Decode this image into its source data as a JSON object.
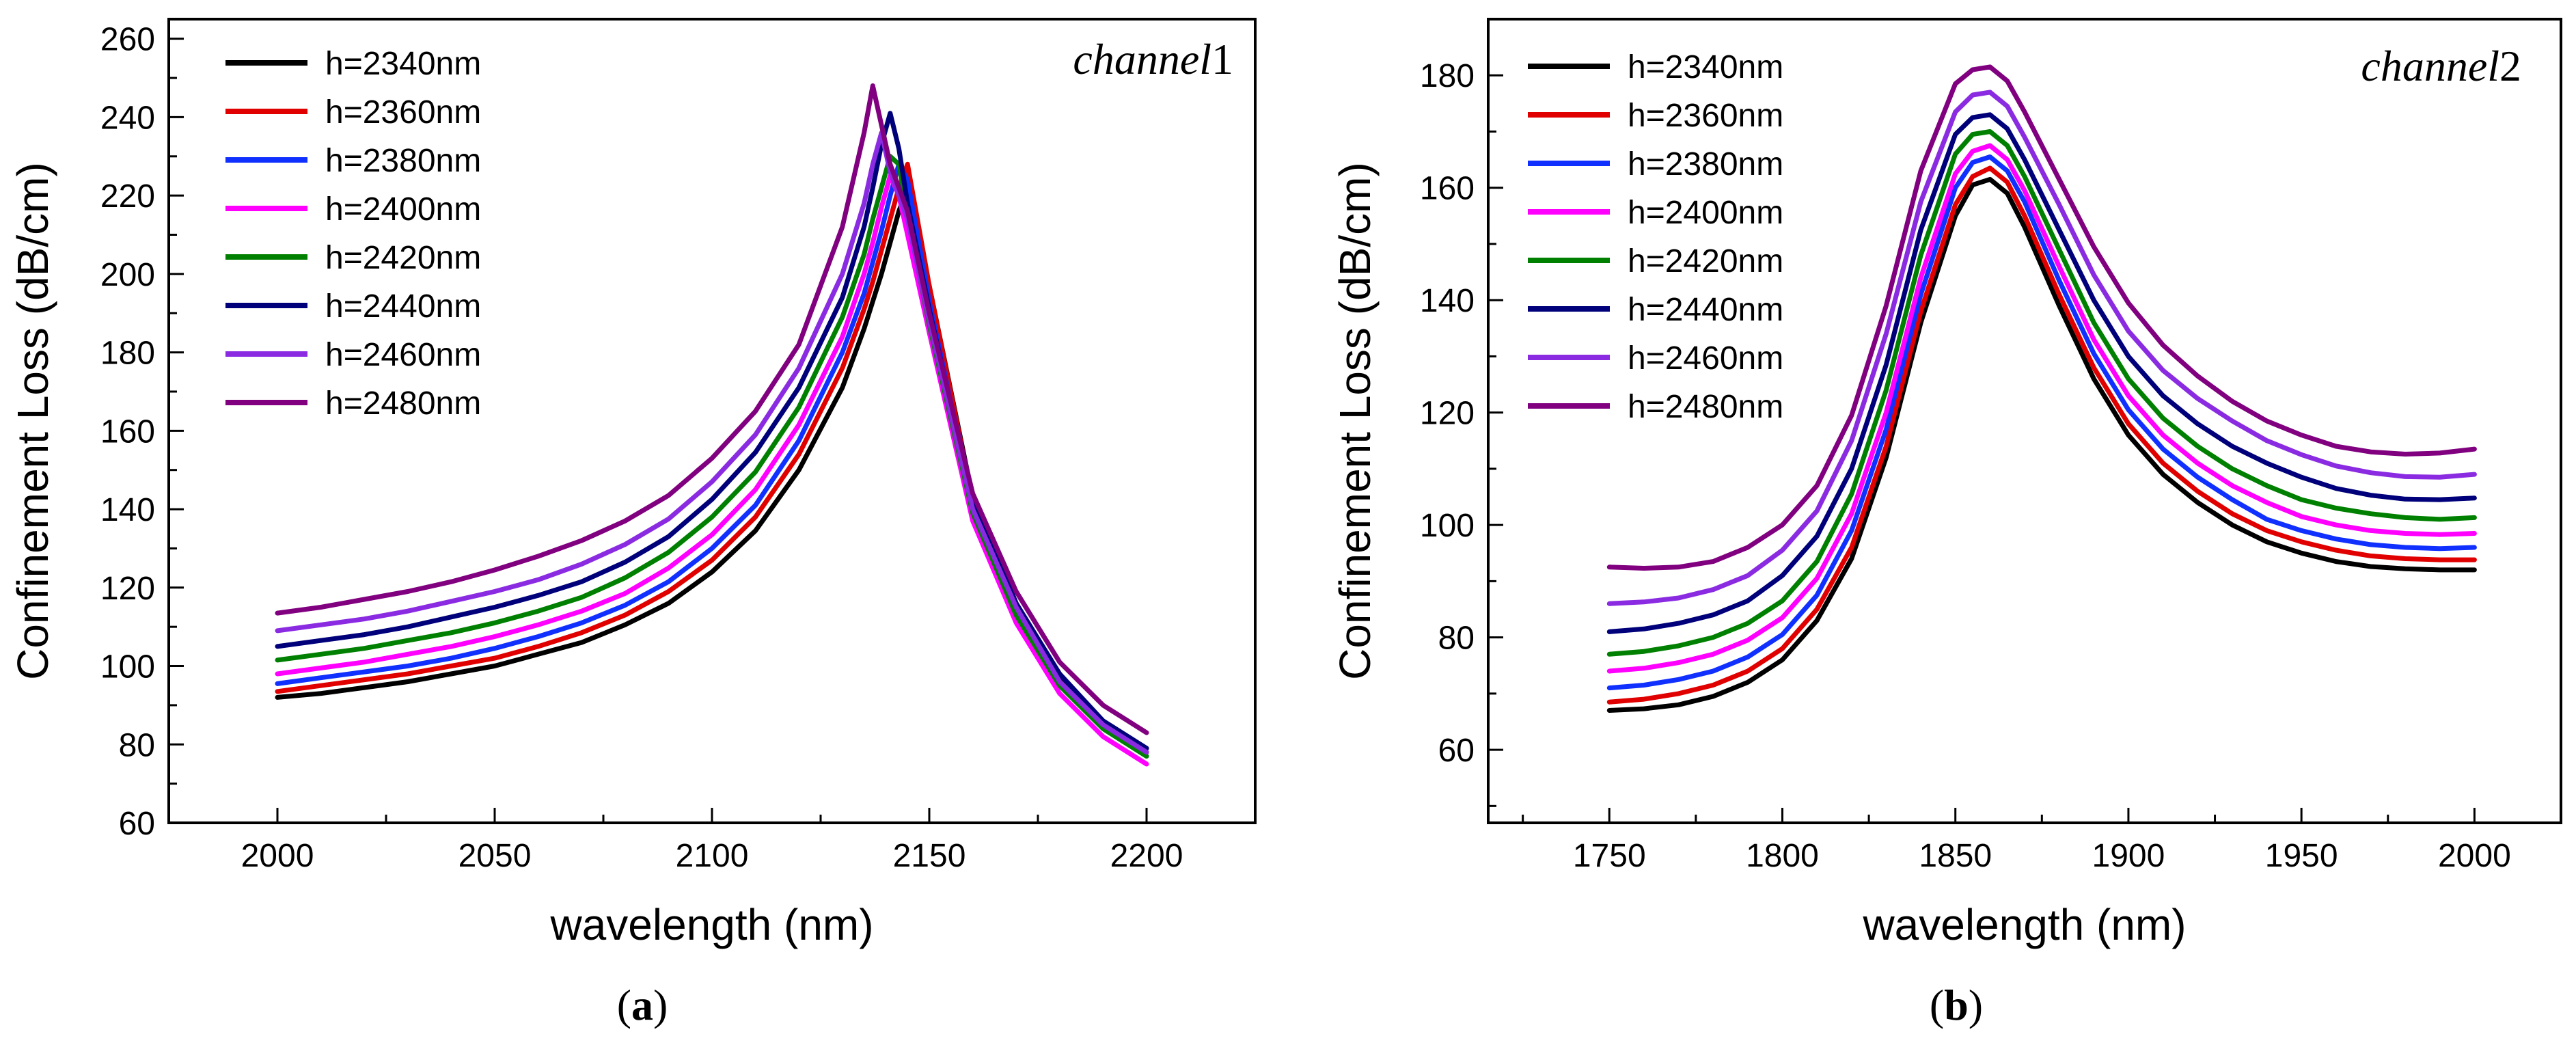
{
  "figure": {
    "panel_a_label": {
      "open": "(",
      "letter": "a",
      "close": ")"
    },
    "panel_b_label": {
      "open": "(",
      "letter": "b",
      "close": ")"
    }
  },
  "chart_data": [
    {
      "type": "line",
      "panel": "a",
      "annotation": {
        "text": "channel",
        "number": "1"
      },
      "xlabel": "wavelength (nm)",
      "ylabel": "Confinement  Loss (dB/cm)",
      "xlim": [
        1975,
        2225
      ],
      "ylim": [
        60,
        265
      ],
      "xticks": [
        2000,
        2050,
        2100,
        2150,
        2200
      ],
      "yticks": [
        60,
        80,
        100,
        120,
        140,
        160,
        180,
        200,
        220,
        240,
        260
      ],
      "x": [
        2000,
        2010,
        2020,
        2030,
        2040,
        2050,
        2060,
        2070,
        2080,
        2090,
        2100,
        2110,
        2120,
        2130,
        2135,
        2137,
        2139,
        2141,
        2143,
        2145,
        2150,
        2160,
        2170,
        2180,
        2190,
        2200
      ],
      "legend_position": "top-left",
      "series": [
        {
          "name": "h=2340nm",
          "color": "#000000",
          "values": [
            92,
            93,
            94.5,
            96,
            98,
            100,
            103,
            106,
            110.5,
            116,
            124,
            134.5,
            150,
            171,
            186,
            193,
            200,
            208,
            216,
            222,
            197,
            143,
            116,
            97,
            86,
            79
          ]
        },
        {
          "name": "h=2360nm",
          "color": "#e00000",
          "values": [
            93.5,
            95,
            96.5,
            98,
            100,
            102,
            105,
            108.5,
            113,
            119,
            127,
            138,
            154,
            176,
            191,
            198,
            206,
            214,
            222,
            228,
            197,
            142,
            115,
            96,
            85,
            78
          ]
        },
        {
          "name": "h=2380nm",
          "color": "#1030ff",
          "values": [
            95.5,
            97,
            98.5,
            100,
            102,
            104.5,
            107.5,
            111,
            115.5,
            121.5,
            130,
            141,
            157.5,
            180,
            195,
            203,
            211,
            220,
            228,
            224,
            193,
            141,
            114,
            95,
            84,
            77
          ]
        },
        {
          "name": "h=2400nm",
          "color": "#ff00ff",
          "values": [
            98,
            99.5,
            101,
            103,
            105,
            107.5,
            110.5,
            114,
            118.5,
            125,
            133.5,
            145,
            161.5,
            184,
            200,
            208,
            217,
            225,
            220,
            210,
            185,
            137,
            111,
            93,
            82,
            75
          ]
        },
        {
          "name": "h=2420nm",
          "color": "#008000",
          "values": [
            101.5,
            103,
            104.5,
            106.5,
            108.5,
            111,
            114,
            117.5,
            122.5,
            129,
            138,
            149.5,
            166,
            189,
            205,
            214,
            222,
            230,
            228,
            215,
            187,
            139,
            113,
            95,
            84,
            77
          ]
        },
        {
          "name": "h=2440nm",
          "color": "#00007a",
          "values": [
            105,
            106.5,
            108,
            110,
            112.5,
            115,
            118,
            121.5,
            126.5,
            133,
            142.5,
            154.5,
            171,
            194,
            212,
            222,
            233,
            241,
            232,
            218,
            191,
            142,
            116,
            98,
            86,
            79
          ]
        },
        {
          "name": "h=2460nm",
          "color": "#8a2be2",
          "values": [
            109,
            110.5,
            112,
            114,
            116.5,
            119,
            122,
            126,
            131,
            137.5,
            147,
            159,
            176,
            200,
            218,
            228,
            236,
            226,
            220,
            214,
            188,
            140,
            115,
            96,
            85,
            78
          ]
        },
        {
          "name": "h=2480nm",
          "color": "#800080",
          "values": [
            113.5,
            115,
            117,
            119,
            121.5,
            124.5,
            128,
            132,
            137,
            143.5,
            153,
            165,
            182,
            212,
            236,
            248,
            238,
            228,
            222,
            216,
            190,
            144,
            119,
            101,
            90,
            83
          ]
        }
      ]
    },
    {
      "type": "line",
      "panel": "b",
      "annotation": {
        "text": "channel",
        "number": "2"
      },
      "xlabel": "wavelength (nm)",
      "ylabel": "Confinement  Loss (dB/cm)",
      "xlim": [
        1715,
        2025
      ],
      "ylim": [
        47,
        190
      ],
      "xticks": [
        1750,
        1800,
        1850,
        1900,
        1950,
        2000
      ],
      "yticks": [
        60,
        80,
        100,
        120,
        140,
        160,
        180
      ],
      "x": [
        1750,
        1760,
        1770,
        1780,
        1790,
        1800,
        1810,
        1820,
        1830,
        1840,
        1850,
        1855,
        1860,
        1865,
        1870,
        1880,
        1890,
        1900,
        1910,
        1920,
        1930,
        1940,
        1950,
        1960,
        1970,
        1980,
        1990,
        2000
      ],
      "legend_position": "top-left",
      "series": [
        {
          "name": "h=2340nm",
          "color": "#000000",
          "values": [
            67,
            67.3,
            68,
            69.5,
            72,
            76,
            83,
            94,
            112,
            136,
            155,
            160.5,
            161.5,
            159,
            153,
            139,
            126,
            116,
            109,
            104,
            100,
            97,
            95,
            93.5,
            92.6,
            92.2,
            92,
            92
          ]
        },
        {
          "name": "h=2360nm",
          "color": "#e00000",
          "values": [
            68.5,
            69,
            70,
            71.5,
            74,
            78,
            85,
            96,
            114,
            138,
            157,
            162,
            163.5,
            161,
            155,
            141,
            128,
            118,
            111,
            106,
            102,
            99,
            97,
            95.5,
            94.5,
            94,
            93.8,
            93.8
          ]
        },
        {
          "name": "h=2380nm",
          "color": "#1030ff",
          "values": [
            71,
            71.5,
            72.5,
            74,
            76.5,
            80.5,
            87.5,
            99,
            117,
            141,
            160,
            164.5,
            165.5,
            163,
            157.5,
            143.5,
            130.5,
            120.5,
            113.5,
            108.5,
            104.5,
            101,
            99,
            97.5,
            96.5,
            96,
            95.8,
            96
          ]
        },
        {
          "name": "h=2400nm",
          "color": "#ff00ff",
          "values": [
            74,
            74.5,
            75.5,
            77,
            79.5,
            83.5,
            90.5,
            102,
            120,
            144,
            162.5,
            166.5,
            167.5,
            165,
            159.5,
            146,
            133,
            123,
            116,
            111,
            107,
            104,
            101.5,
            100,
            99,
            98.5,
            98.3,
            98.5
          ]
        },
        {
          "name": "h=2420nm",
          "color": "#008000",
          "values": [
            77,
            77.5,
            78.5,
            80,
            82.5,
            86.5,
            93.5,
            105.5,
            124,
            148,
            166,
            169.5,
            170,
            167.5,
            162,
            149,
            136,
            126,
            119,
            114,
            110,
            107,
            104.5,
            103,
            102,
            101.3,
            101,
            101.3
          ]
        },
        {
          "name": "h=2440nm",
          "color": "#00007a",
          "values": [
            81,
            81.5,
            82.5,
            84,
            86.5,
            91,
            98,
            110,
            128.5,
            152.5,
            169.5,
            172.5,
            173,
            170.5,
            165,
            152.5,
            140,
            130,
            123,
            118,
            114,
            111,
            108.5,
            106.5,
            105.3,
            104.6,
            104.5,
            104.8
          ]
        },
        {
          "name": "h=2460nm",
          "color": "#8a2be2",
          "values": [
            86,
            86.3,
            87,
            88.5,
            91,
            95.5,
            102.5,
            115,
            134,
            157.5,
            173.5,
            176.5,
            177,
            174.5,
            169,
            157,
            144.5,
            134.5,
            127.5,
            122.5,
            118.5,
            115,
            112.5,
            110.5,
            109.3,
            108.6,
            108.5,
            109
          ]
        },
        {
          "name": "h=2480nm",
          "color": "#800080",
          "values": [
            92.5,
            92.3,
            92.5,
            93.5,
            96,
            100,
            107,
            119.5,
            139,
            163,
            178.5,
            181,
            181.5,
            179,
            173.5,
            161.5,
            149.5,
            139.5,
            132,
            126.5,
            122,
            118.5,
            116,
            114,
            113,
            112.6,
            112.8,
            113.5
          ]
        }
      ]
    }
  ]
}
